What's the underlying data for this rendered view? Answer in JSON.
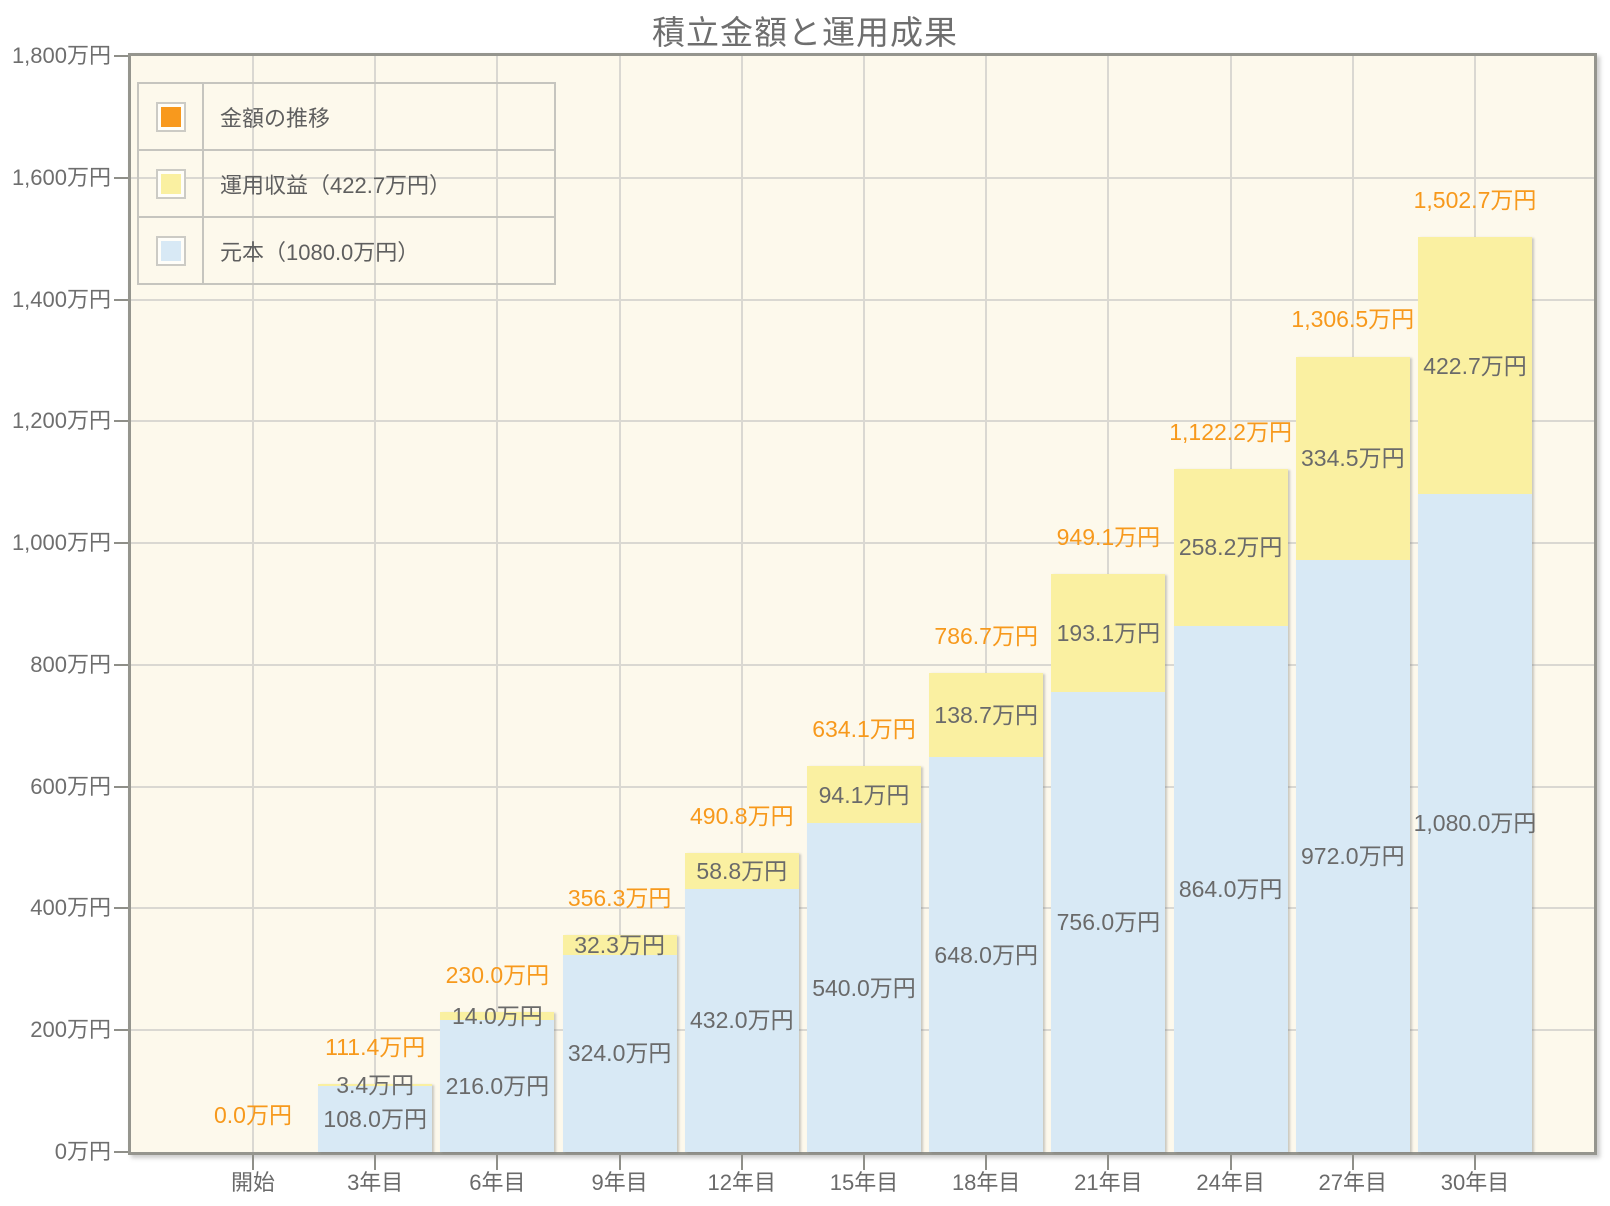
{
  "title": "積立金額と運用成果",
  "colors": {
    "plot_background": "#FDF9EC",
    "principal_bar": "#D8E9F5",
    "yield_bar": "#FAF0A1",
    "total_label": "#F7991C",
    "segment_label": "#6A6A6A",
    "grid": "#DAD8D2",
    "frame": "#95958E"
  },
  "legend": {
    "items": [
      {
        "name": "total",
        "label": "金額の推移",
        "color": "#F8991D"
      },
      {
        "name": "yield",
        "label": "運用収益（422.7万円）",
        "color": "#FAF0A1"
      },
      {
        "name": "principal",
        "label": "元本（1080.0万円）",
        "color": "#D8E9F5"
      }
    ]
  },
  "chart_data": {
    "type": "bar",
    "stacked": true,
    "title": "積立金額と運用成果",
    "categories": [
      "開始",
      "3年目",
      "6年目",
      "9年目",
      "12年目",
      "15年目",
      "18年目",
      "21年目",
      "24年目",
      "27年目",
      "30年目"
    ],
    "series": [
      {
        "name": "元本",
        "color": "#D8E9F5",
        "values": [
          0,
          108.0,
          216.0,
          324.0,
          432.0,
          540.0,
          648.0,
          756.0,
          864.0,
          972.0,
          1080.0
        ]
      },
      {
        "name": "運用収益",
        "color": "#FAF0A1",
        "values": [
          0,
          3.4,
          14.0,
          32.3,
          58.8,
          94.1,
          138.7,
          193.1,
          258.2,
          334.5,
          422.7
        ]
      }
    ],
    "totals": [
      0.0,
      111.4,
      230.0,
      356.3,
      490.8,
      634.1,
      786.7,
      949.1,
      1122.2,
      1306.5,
      1502.7
    ],
    "total_labels": [
      "0.0万円",
      "111.4万円",
      "230.0万円",
      "356.3万円",
      "490.8万円",
      "634.1万円",
      "786.7万円",
      "949.1万円",
      "1,122.2万円",
      "1,306.5万円",
      "1,502.7万円"
    ],
    "yield_labels": [
      "",
      "3.4万円",
      "14.0万円",
      "32.3万円",
      "58.8万円",
      "94.1万円",
      "138.7万円",
      "193.1万円",
      "258.2万円",
      "334.5万円",
      "422.7万円"
    ],
    "principal_labels": [
      "",
      "108.0万円",
      "216.0万円",
      "324.0万円",
      "432.0万円",
      "540.0万円",
      "648.0万円",
      "756.0万円",
      "864.0万円",
      "972.0万円",
      "1,080.0万円"
    ],
    "ylim": [
      0,
      1800
    ],
    "ytick_step": 200,
    "ytick_labels": [
      "0万円",
      "200万円",
      "400万円",
      "600万円",
      "800万円",
      "1,000万円",
      "1,200万円",
      "1,400万円",
      "1,600万円",
      "1,800万円"
    ],
    "grid": true,
    "legend_position": "top-left"
  }
}
